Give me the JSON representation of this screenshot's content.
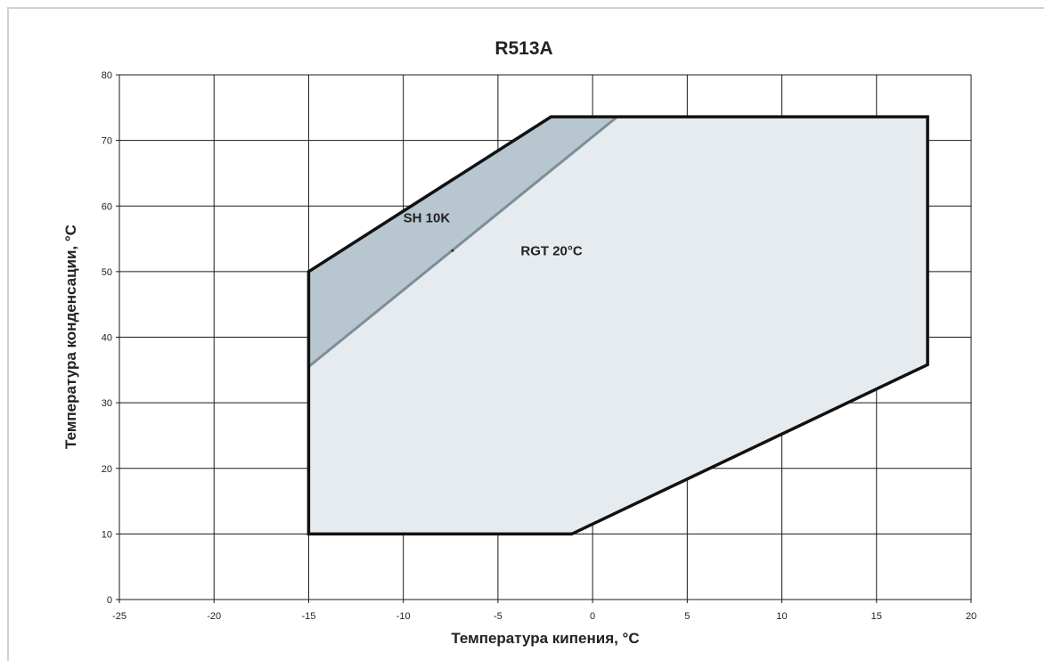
{
  "chart_data": {
    "type": "area",
    "title": "R513A",
    "xlabel": "Температура кипения, °C",
    "ylabel": "Температура конденсации, °C",
    "xlim": [
      -25,
      20
    ],
    "ylim": [
      0,
      80
    ],
    "xticks": [
      -25,
      -20,
      -15,
      -10,
      -5,
      0,
      5,
      10,
      15,
      20
    ],
    "yticks": [
      0,
      10,
      20,
      30,
      40,
      50,
      60,
      70,
      80
    ],
    "grid": true,
    "colors": {
      "envelope_fill": "#e6ebef",
      "sh_band_fill": "#b7c6cf",
      "sh_line": "#7c8e99",
      "outline": "#111111"
    },
    "series": [
      {
        "name": "RGT 20°C",
        "x": [
          -15,
          -15,
          -2.2,
          17.7,
          17.7,
          -1.1,
          -15
        ],
        "y": [
          10,
          50,
          73.6,
          73.6,
          35.8,
          10,
          10
        ]
      },
      {
        "name": "SH 10K",
        "x": [
          -15,
          -15,
          -2.2,
          1.3,
          -15
        ],
        "y": [
          35.5,
          50,
          73.6,
          73.6,
          35.5
        ]
      }
    ],
    "annotations": [
      {
        "text": "SH 10K",
        "x": -10.0,
        "y": 57.5
      },
      {
        "text": "RGT 20°C",
        "x": -3.8,
        "y": 52.5
      }
    ]
  }
}
